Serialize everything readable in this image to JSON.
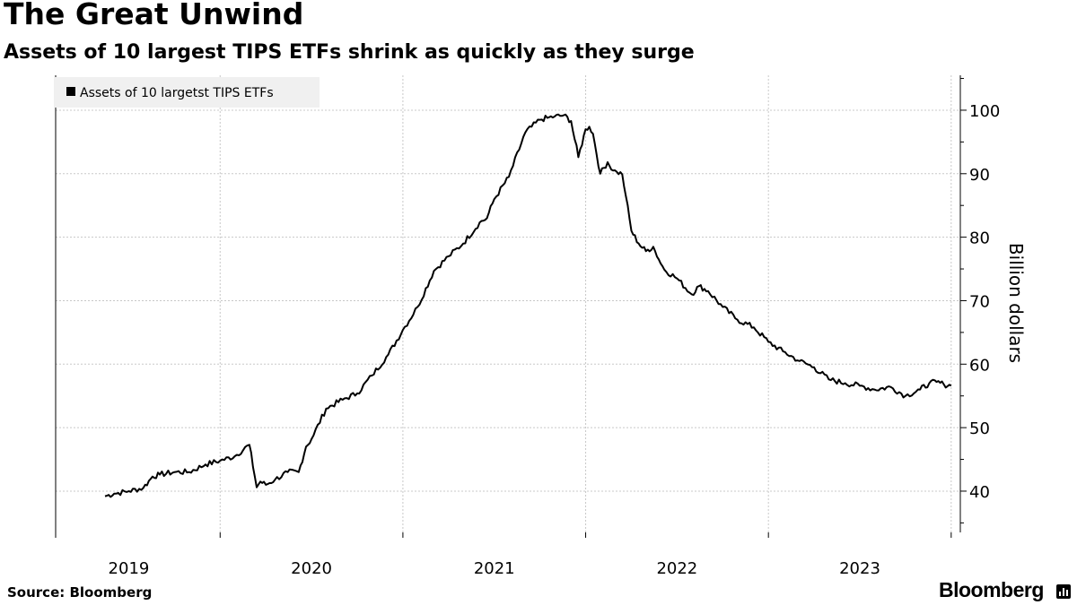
{
  "header": {
    "title": "The Great Unwind",
    "subtitle": "Assets of 10 largest TIPS ETFs shrink as quickly as they surge"
  },
  "footer": {
    "source": "Source: Bloomberg",
    "brand": "Bloomberg"
  },
  "colors": {
    "line": "#000000",
    "grid": "#c8c8c8",
    "legend_bg": "#f0f0f0"
  },
  "chart_data": {
    "type": "line",
    "title": "The Great Unwind",
    "subtitle": "Assets of 10 largest TIPS ETFs shrink as quickly as they surge",
    "xlabel": "",
    "ylabel": "Billion dollars",
    "y_axis_side": "right",
    "ylim": [
      33.5,
      105.5
    ],
    "xlim": [
      2018.6,
      2023.55
    ],
    "y_ticks": [
      40,
      50,
      60,
      70,
      80,
      90,
      100
    ],
    "x_ticks": [
      {
        "label": "2019",
        "value": 2019.0
      },
      {
        "label": "2020",
        "value": 2020.0
      },
      {
        "label": "2021",
        "value": 2021.0
      },
      {
        "label": "2022",
        "value": 2022.0
      },
      {
        "label": "2023",
        "value": 2023.0
      }
    ],
    "x_gridlines": [
      2018.6,
      2019.5,
      2020.5,
      2021.5,
      2022.5,
      2023.5
    ],
    "grid": true,
    "legend": {
      "placement": "top-left",
      "entries": [
        "Assets of 10 largetst TIPS ETFs"
      ]
    },
    "series": [
      {
        "name": "Assets of 10 largetst TIPS ETFs",
        "x": [
          2018.87,
          2018.92,
          2019.0,
          2019.08,
          2019.13,
          2019.17,
          2019.25,
          2019.33,
          2019.42,
          2019.5,
          2019.58,
          2019.66,
          2019.7,
          2019.72,
          2019.75,
          2019.8,
          2019.87,
          2019.93,
          2019.97,
          2020.0,
          2020.08,
          2020.17,
          2020.25,
          2020.33,
          2020.42,
          2020.5,
          2020.58,
          2020.67,
          2020.75,
          2020.83,
          2020.92,
          2020.96,
          2020.97,
          2021.0,
          2021.08,
          2021.17,
          2021.25,
          2021.29,
          2021.33,
          2021.38,
          2021.42,
          2021.46,
          2021.5,
          2021.52,
          2021.54,
          2021.58,
          2021.62,
          2021.65,
          2021.67,
          2021.7,
          2021.72,
          2021.75,
          2021.79,
          2021.83,
          2021.87,
          2021.9,
          2021.93,
          2022.0,
          2022.08,
          2022.12,
          2022.17,
          2022.25,
          2022.33,
          2022.42,
          2022.5,
          2022.58,
          2022.67,
          2022.75,
          2022.83,
          2022.92,
          2023.0,
          2023.08,
          2023.17,
          2023.25,
          2023.33,
          2023.38,
          2023.42,
          2023.46,
          2023.5
        ],
        "values": [
          39.2,
          39.6,
          40.0,
          40.5,
          42.3,
          42.6,
          43.0,
          43.0,
          44.2,
          44.8,
          45.5,
          47.3,
          40.6,
          41.5,
          41.0,
          41.8,
          43.0,
          43.0,
          47.0,
          48.2,
          53.0,
          54.4,
          55.4,
          58.2,
          61.5,
          65.4,
          69.0,
          74.7,
          77.0,
          79.0,
          82.3,
          83.0,
          83.8,
          86.0,
          89.5,
          96.5,
          98.5,
          98.8,
          99.0,
          99.2,
          98.3,
          92.6,
          97.0,
          97.4,
          96.3,
          90.0,
          91.8,
          90.5,
          90.3,
          89.9,
          86.5,
          81.0,
          79.0,
          77.8,
          78.5,
          76.5,
          74.9,
          73.5,
          71.0,
          72.3,
          71.5,
          69.0,
          67.0,
          65.8,
          63.5,
          62.0,
          60.5,
          59.5,
          57.6,
          57.0,
          56.6,
          56.0,
          56.4,
          55.0,
          56.0,
          57.0,
          57.2,
          56.8,
          56.6
        ]
      }
    ]
  }
}
